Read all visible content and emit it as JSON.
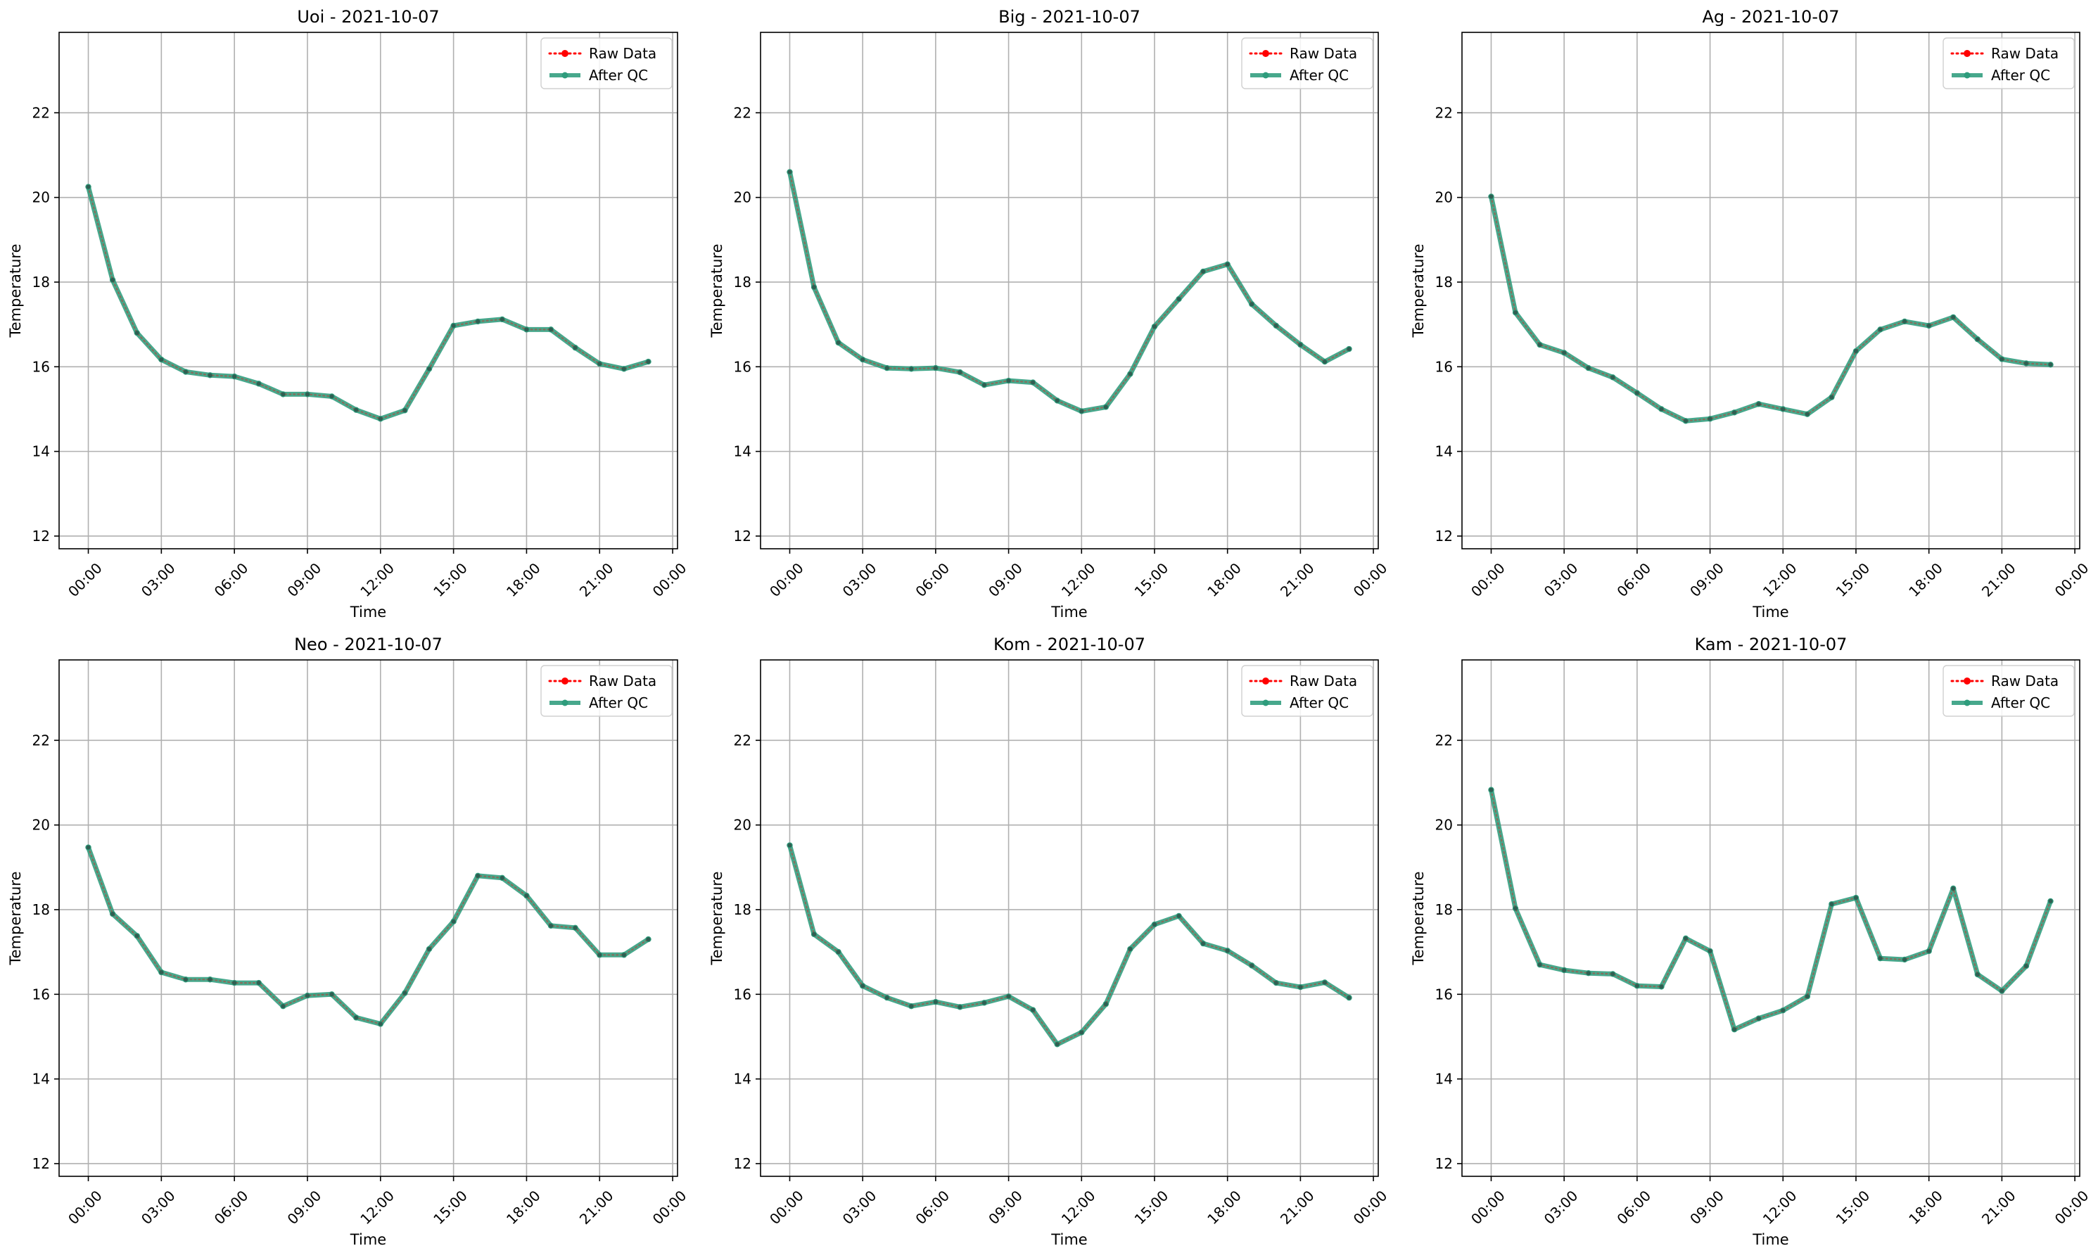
{
  "colors": {
    "raw": "#ff0000",
    "qc": "#2e9c7c",
    "grid": "#b0b0b0",
    "axis": "#000000"
  },
  "legend": {
    "raw_label": "Raw Data",
    "qc_label": "After QC"
  },
  "chart_data": [
    {
      "type": "line",
      "title": "Uoi - 2021-10-07",
      "xlabel": "Time",
      "ylabel": "Temperature",
      "ylim": [
        11.7,
        23.9
      ],
      "yticks": [
        12,
        14,
        16,
        18,
        20,
        22
      ],
      "xlim_hours": [
        -1.2,
        24.2
      ],
      "xticks": [
        "00:00",
        "03:00",
        "06:00",
        "09:00",
        "12:00",
        "15:00",
        "18:00",
        "21:00",
        "00:00"
      ],
      "legend_position": "top-right",
      "grid": true,
      "x_hours": [
        0,
        1,
        2,
        3,
        4,
        5,
        6,
        7,
        8,
        9,
        10,
        11,
        12,
        13,
        14,
        15,
        16,
        17,
        18,
        19,
        20,
        21,
        22,
        23
      ],
      "series": [
        {
          "name": "Raw Data",
          "values": [
            20.25,
            18.05,
            16.8,
            16.17,
            15.88,
            15.8,
            15.77,
            15.6,
            15.35,
            15.35,
            15.3,
            14.98,
            14.77,
            14.97,
            15.95,
            16.97,
            17.07,
            17.12,
            16.88,
            16.88,
            16.45,
            16.07,
            15.95,
            16.12
          ]
        },
        {
          "name": "After QC",
          "values": [
            20.25,
            18.05,
            16.8,
            16.17,
            15.88,
            15.8,
            15.77,
            15.6,
            15.35,
            15.35,
            15.3,
            14.98,
            14.77,
            14.97,
            15.95,
            16.97,
            17.07,
            17.12,
            16.88,
            16.88,
            16.45,
            16.07,
            15.95,
            16.12
          ]
        }
      ]
    },
    {
      "type": "line",
      "title": "Big - 2021-10-07",
      "xlabel": "Time",
      "ylabel": "Temperature",
      "ylim": [
        11.7,
        23.9
      ],
      "yticks": [
        12,
        14,
        16,
        18,
        20,
        22
      ],
      "xlim_hours": [
        -1.2,
        24.2
      ],
      "xticks": [
        "00:00",
        "03:00",
        "06:00",
        "09:00",
        "12:00",
        "15:00",
        "18:00",
        "21:00",
        "00:00"
      ],
      "legend_position": "top-right",
      "grid": true,
      "x_hours": [
        0,
        1,
        2,
        3,
        4,
        5,
        6,
        7,
        8,
        9,
        10,
        11,
        12,
        13,
        14,
        15,
        16,
        17,
        18,
        19,
        20,
        21,
        22,
        23
      ],
      "series": [
        {
          "name": "Raw Data",
          "values": [
            20.6,
            17.88,
            16.57,
            16.17,
            15.97,
            15.95,
            15.97,
            15.87,
            15.57,
            15.67,
            15.63,
            15.2,
            14.95,
            15.05,
            15.83,
            16.95,
            17.6,
            18.25,
            18.42,
            17.48,
            16.97,
            16.52,
            16.12,
            16.42
          ]
        },
        {
          "name": "After QC",
          "values": [
            20.6,
            17.88,
            16.57,
            16.17,
            15.97,
            15.95,
            15.97,
            15.87,
            15.57,
            15.67,
            15.63,
            15.2,
            14.95,
            15.05,
            15.83,
            16.95,
            17.6,
            18.25,
            18.42,
            17.48,
            16.97,
            16.52,
            16.12,
            16.42
          ]
        }
      ]
    },
    {
      "type": "line",
      "title": "Ag - 2021-10-07",
      "xlabel": "Time",
      "ylabel": "Temperature",
      "ylim": [
        11.7,
        23.9
      ],
      "yticks": [
        12,
        14,
        16,
        18,
        20,
        22
      ],
      "xlim_hours": [
        -1.2,
        24.2
      ],
      "xticks": [
        "00:00",
        "03:00",
        "06:00",
        "09:00",
        "12:00",
        "15:00",
        "18:00",
        "21:00",
        "00:00"
      ],
      "legend_position": "top-right",
      "grid": true,
      "x_hours": [
        0,
        1,
        2,
        3,
        4,
        5,
        6,
        7,
        8,
        9,
        10,
        11,
        12,
        13,
        14,
        15,
        16,
        17,
        18,
        19,
        20,
        21,
        22,
        23
      ],
      "series": [
        {
          "name": "Raw Data",
          "values": [
            20.02,
            17.28,
            16.52,
            16.33,
            15.97,
            15.75,
            15.38,
            15.0,
            14.72,
            14.77,
            14.92,
            15.12,
            15.0,
            14.88,
            15.28,
            16.37,
            16.88,
            17.07,
            16.97,
            17.17,
            16.65,
            16.18,
            16.08,
            16.05
          ]
        },
        {
          "name": "After QC",
          "values": [
            20.02,
            17.28,
            16.52,
            16.33,
            15.97,
            15.75,
            15.38,
            15.0,
            14.72,
            14.77,
            14.92,
            15.12,
            15.0,
            14.88,
            15.28,
            16.37,
            16.88,
            17.07,
            16.97,
            17.17,
            16.65,
            16.18,
            16.08,
            16.05
          ]
        }
      ]
    },
    {
      "type": "line",
      "title": "Neo - 2021-10-07",
      "xlabel": "Time",
      "ylabel": "Temperature",
      "ylim": [
        11.7,
        23.9
      ],
      "yticks": [
        12,
        14,
        16,
        18,
        20,
        22
      ],
      "xlim_hours": [
        -1.2,
        24.2
      ],
      "xticks": [
        "00:00",
        "03:00",
        "06:00",
        "09:00",
        "12:00",
        "15:00",
        "18:00",
        "21:00",
        "00:00"
      ],
      "legend_position": "top-right",
      "grid": true,
      "x_hours": [
        0,
        1,
        2,
        3,
        4,
        5,
        6,
        7,
        8,
        9,
        10,
        11,
        12,
        13,
        14,
        15,
        16,
        17,
        18,
        19,
        20,
        21,
        22,
        23
      ],
      "series": [
        {
          "name": "Raw Data",
          "values": [
            19.47,
            17.9,
            17.38,
            16.52,
            16.35,
            16.35,
            16.27,
            16.27,
            15.72,
            15.97,
            16.0,
            15.45,
            15.3,
            16.03,
            17.07,
            17.72,
            18.8,
            18.75,
            18.33,
            17.62,
            17.57,
            16.93,
            16.93,
            17.3
          ]
        },
        {
          "name": "After QC",
          "values": [
            19.47,
            17.9,
            17.38,
            16.52,
            16.35,
            16.35,
            16.27,
            16.27,
            15.72,
            15.97,
            16.0,
            15.45,
            15.3,
            16.03,
            17.07,
            17.72,
            18.8,
            18.75,
            18.33,
            17.62,
            17.57,
            16.93,
            16.93,
            17.3
          ]
        }
      ]
    },
    {
      "type": "line",
      "title": "Kom - 2021-10-07",
      "xlabel": "Time",
      "ylabel": "Temperature",
      "ylim": [
        11.7,
        23.9
      ],
      "yticks": [
        12,
        14,
        16,
        18,
        20,
        22
      ],
      "xlim_hours": [
        -1.2,
        24.2
      ],
      "xticks": [
        "00:00",
        "03:00",
        "06:00",
        "09:00",
        "12:00",
        "15:00",
        "18:00",
        "21:00",
        "00:00"
      ],
      "legend_position": "top-right",
      "grid": true,
      "x_hours": [
        0,
        1,
        2,
        3,
        4,
        5,
        6,
        7,
        8,
        9,
        10,
        11,
        12,
        13,
        14,
        15,
        16,
        17,
        18,
        19,
        20,
        21,
        22,
        23
      ],
      "series": [
        {
          "name": "Raw Data",
          "values": [
            19.52,
            17.42,
            17.0,
            16.2,
            15.92,
            15.72,
            15.82,
            15.7,
            15.8,
            15.95,
            15.63,
            14.82,
            15.1,
            15.77,
            17.07,
            17.65,
            17.85,
            17.2,
            17.03,
            16.68,
            16.27,
            16.17,
            16.28,
            15.92
          ]
        },
        {
          "name": "After QC",
          "values": [
            19.52,
            17.42,
            17.0,
            16.2,
            15.92,
            15.72,
            15.82,
            15.7,
            15.8,
            15.95,
            15.63,
            14.82,
            15.1,
            15.77,
            17.07,
            17.65,
            17.85,
            17.2,
            17.03,
            16.68,
            16.27,
            16.17,
            16.28,
            15.92
          ]
        }
      ]
    },
    {
      "type": "line",
      "title": "Kam - 2021-10-07",
      "xlabel": "Time",
      "ylabel": "Temperature",
      "ylim": [
        11.7,
        23.9
      ],
      "yticks": [
        12,
        14,
        16,
        18,
        20,
        22
      ],
      "xlim_hours": [
        -1.2,
        24.2
      ],
      "xticks": [
        "00:00",
        "03:00",
        "06:00",
        "09:00",
        "12:00",
        "15:00",
        "18:00",
        "21:00",
        "00:00"
      ],
      "legend_position": "top-right",
      "grid": true,
      "x_hours": [
        0,
        1,
        2,
        3,
        4,
        5,
        6,
        7,
        8,
        9,
        10,
        11,
        12,
        13,
        14,
        15,
        16,
        17,
        18,
        19,
        20,
        21,
        22,
        23
      ],
      "series": [
        {
          "name": "Raw Data",
          "values": [
            20.83,
            18.03,
            16.7,
            16.57,
            16.5,
            16.48,
            16.2,
            16.18,
            17.32,
            17.02,
            15.17,
            15.43,
            15.62,
            15.95,
            18.13,
            18.28,
            16.85,
            16.82,
            17.02,
            18.5,
            16.47,
            16.08,
            16.67,
            18.2
          ]
        },
        {
          "name": "After QC",
          "values": [
            20.83,
            18.03,
            16.7,
            16.57,
            16.5,
            16.48,
            16.2,
            16.18,
            17.32,
            17.02,
            15.17,
            15.43,
            15.62,
            15.95,
            18.13,
            18.28,
            16.85,
            16.82,
            17.02,
            18.5,
            16.47,
            16.08,
            16.67,
            18.2
          ]
        }
      ]
    }
  ]
}
